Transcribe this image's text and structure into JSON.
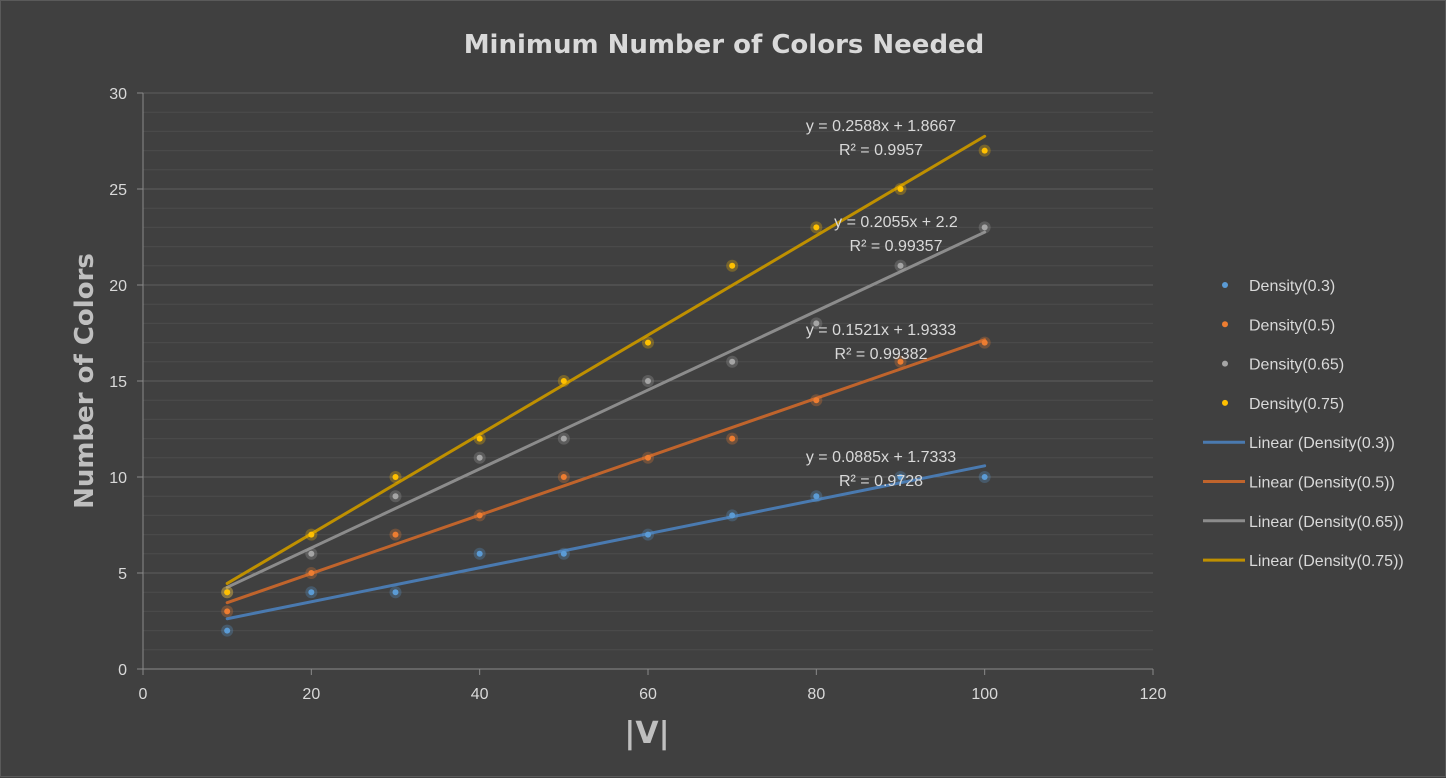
{
  "chart_data": {
    "type": "scatter",
    "title": "Minimum  Number of Colors Needed",
    "xlabel": "|V|",
    "ylabel": "Number of Colors",
    "xlim": [
      0,
      120
    ],
    "ylim": [
      0,
      30
    ],
    "xticks": [
      0,
      20,
      40,
      60,
      80,
      100,
      120
    ],
    "yticks": [
      0,
      5,
      10,
      15,
      20,
      25,
      30
    ],
    "grid": true,
    "legend_position": "right",
    "x": [
      10,
      20,
      30,
      40,
      50,
      60,
      70,
      80,
      90,
      100
    ],
    "series": [
      {
        "name": "Density(0.3)",
        "color": "#5b9bd5",
        "values": [
          2,
          4,
          4,
          6,
          6,
          7,
          8,
          9,
          10,
          10
        ]
      },
      {
        "name": "Density(0.5)",
        "color": "#ed7d31",
        "values": [
          3,
          5,
          7,
          8,
          10,
          11,
          12,
          14,
          16,
          17
        ]
      },
      {
        "name": "Density(0.65)",
        "color": "#a5a5a5",
        "values": [
          4,
          6,
          9,
          11,
          12,
          15,
          16,
          18,
          21,
          23
        ]
      },
      {
        "name": "Density(0.75)",
        "color": "#ffc000",
        "values": [
          4,
          7,
          10,
          12,
          15,
          17,
          21,
          23,
          25,
          27
        ]
      }
    ],
    "trendlines": [
      {
        "name": "Linear  (Density(0.3))",
        "color": "#4a7ab0",
        "slope": 0.0885,
        "intercept": 1.7333,
        "equation": "y = 0.0885x + 1.7333",
        "r2": "R² = 0.9728"
      },
      {
        "name": "Linear  (Density(0.5))",
        "color": "#c0642c",
        "slope": 0.1521,
        "intercept": 1.9333,
        "equation": "y = 0.1521x + 1.9333",
        "r2": "R² = 0.99382"
      },
      {
        "name": "Linear  (Density(0.65))",
        "color": "#8c8c8c",
        "slope": 0.2055,
        "intercept": 2.2,
        "equation": "y = 0.2055x + 2.2",
        "r2": "R² = 0.99357"
      },
      {
        "name": "Linear  (Density(0.75))",
        "color": "#bf9000",
        "slope": 0.2588,
        "intercept": 1.8667,
        "equation": "y = 0.2588x + 1.8667",
        "r2": "R² = 0.9957"
      }
    ]
  }
}
